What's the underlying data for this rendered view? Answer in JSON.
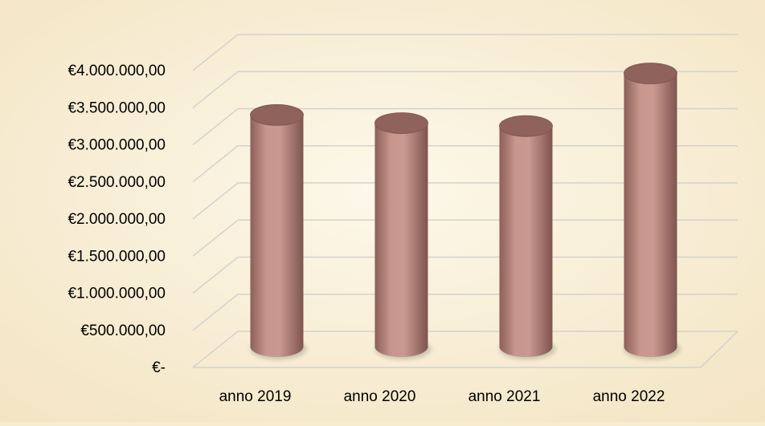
{
  "chart_data": {
    "type": "bar",
    "style": "3d-cylinder",
    "categories": [
      "anno 2019",
      "anno 2020",
      "anno 2021",
      "anno 2022"
    ],
    "series": [
      {
        "values": [
          3240000,
          3130000,
          3090000,
          3800000
        ]
      }
    ],
    "ylim": [
      0,
      4000000
    ],
    "y_ticks": [
      0,
      500000,
      1000000,
      1500000,
      2000000,
      2500000,
      3000000,
      3500000,
      4000000
    ],
    "y_tick_labels": [
      "€-",
      "€500.000,00",
      "€1.000.000,00",
      "€1.500.000,00",
      "€2.000.000,00",
      "€2.500.000,00",
      "€3.000.000,00",
      "€3.500.000,00",
      "€4.000.000,00"
    ],
    "grid": true,
    "legend": "none",
    "title": "",
    "xlabel": "",
    "ylabel": ""
  },
  "colors": {
    "background": "#f7eccf",
    "bar_body": "#c48f86",
    "bar_top": "#8f625b",
    "grid": "#d4d2cc",
    "text": "#000000"
  }
}
